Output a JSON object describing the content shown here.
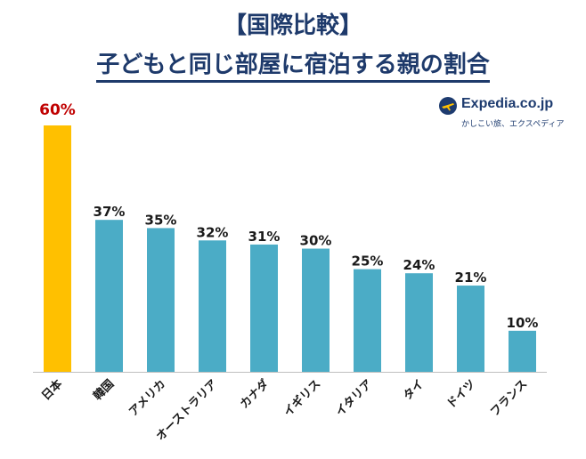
{
  "header": {
    "title_line1": "【国際比較】",
    "title_line2": "子どもと同じ部屋に宿泊する親の割合"
  },
  "logo": {
    "name": "Expedia.co.jp",
    "tagline": "かしこい旅、エクスペディア",
    "icon": "airplane-globe-icon",
    "color": "#1d3b6f"
  },
  "colors": {
    "highlight": "#ffc000",
    "bar": "#4bacc6",
    "highlight_label": "#c00000",
    "label": "#1a1a1a"
  },
  "chart_data": {
    "type": "bar",
    "categories": [
      "日本",
      "韓国",
      "アメリカ",
      "オーストラリア",
      "カナダ",
      "イギリス",
      "イタリア",
      "タイ",
      "ドイツ",
      "フランス"
    ],
    "values": [
      60,
      37,
      35,
      32,
      31,
      30,
      25,
      24,
      21,
      10
    ],
    "value_labels": [
      "60%",
      "37%",
      "35%",
      "32%",
      "31%",
      "30%",
      "25%",
      "24%",
      "21%",
      "10%"
    ],
    "highlight_index": 0,
    "ylim": [
      0,
      60
    ],
    "grid": false,
    "legend": "none",
    "xlabel": "",
    "ylabel": ""
  }
}
